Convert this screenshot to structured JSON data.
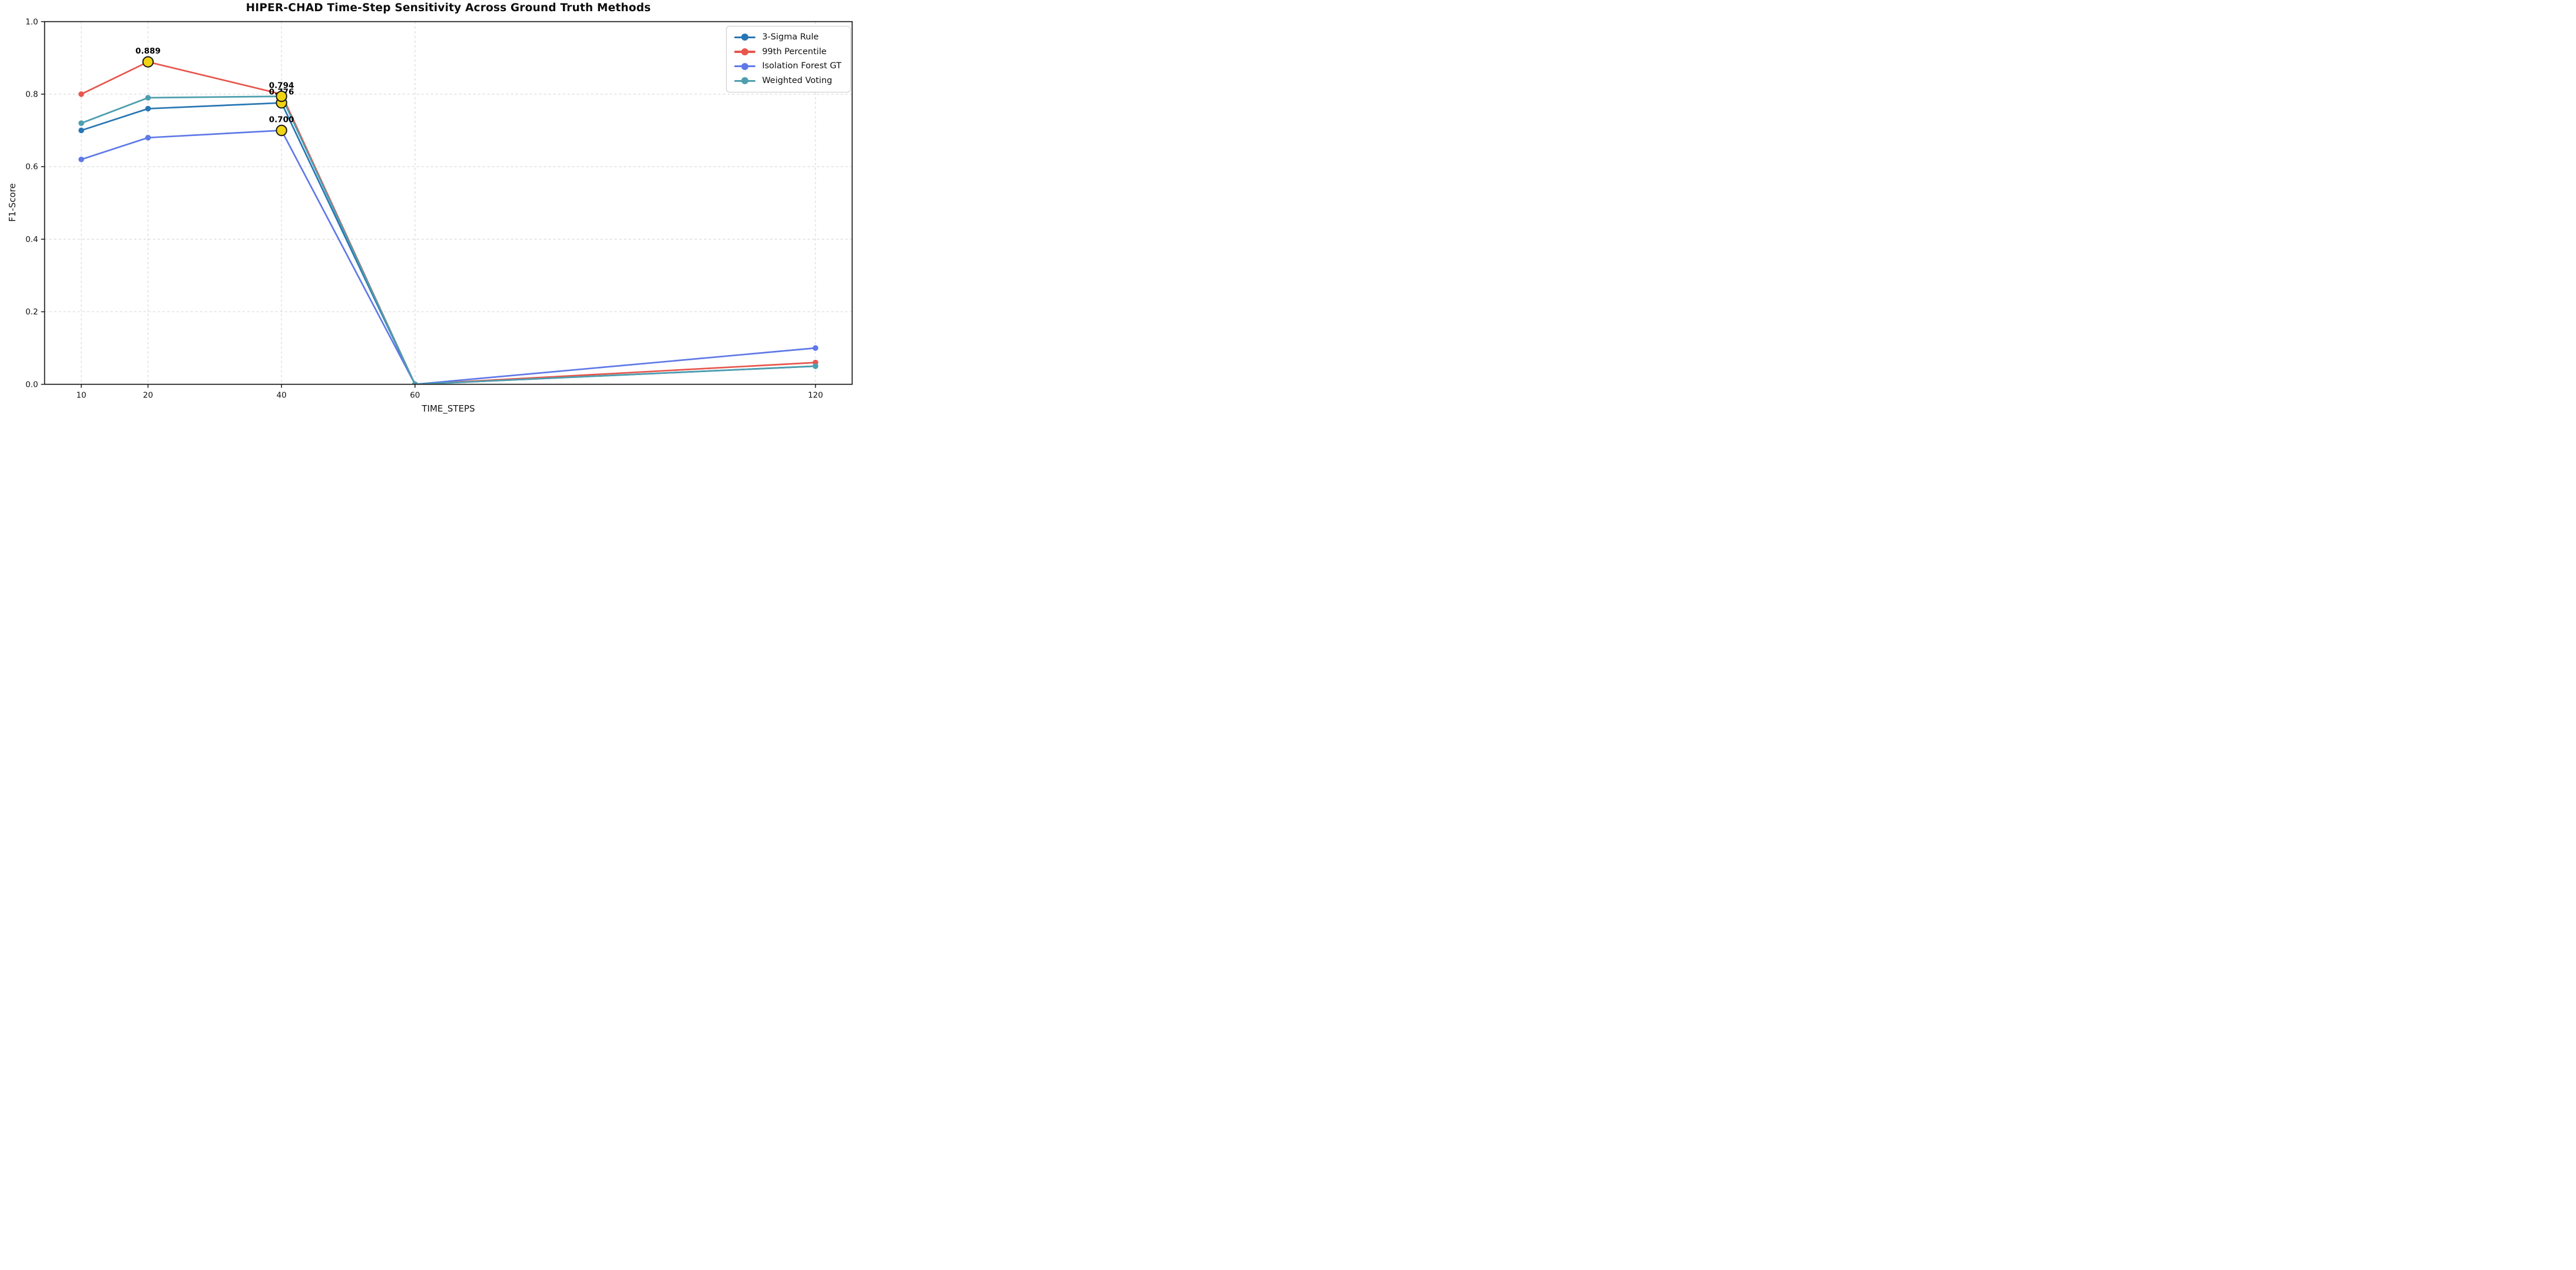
{
  "chart_data": {
    "type": "line",
    "title": "HIPER-CHAD Time-Step Sensitivity Across Ground Truth Methods",
    "xlabel": "TIME_STEPS",
    "ylabel": "F1-Score",
    "x": [
      10,
      20,
      40,
      60,
      120
    ],
    "xtick_labels": [
      "10",
      "20",
      "40",
      "60",
      "120"
    ],
    "ytick_values": [
      0.0,
      0.2,
      0.4,
      0.6,
      0.8,
      1.0
    ],
    "ytick_labels": [
      "0.0",
      "0.2",
      "0.4",
      "0.6",
      "0.8",
      "1.0"
    ],
    "xlim": [
      4.5,
      125.5
    ],
    "ylim": [
      0.0,
      1.0
    ],
    "grid": "dashed-light-gray",
    "legend_position": "upper-right",
    "series": [
      {
        "name": "3-Sigma Rule",
        "color": "#2776b4",
        "values": [
          0.7,
          0.76,
          0.776,
          0.0,
          0.05
        ]
      },
      {
        "name": "99th Percentile",
        "color": "#e7564c",
        "values": [
          0.8,
          0.889,
          0.8,
          0.0,
          0.06
        ]
      },
      {
        "name": "Isolation Forest GT",
        "color": "#5f79e8",
        "values": [
          0.62,
          0.68,
          0.7,
          0.0,
          0.1
        ]
      },
      {
        "name": "Weighted Voting",
        "color": "#4d9fae",
        "values": [
          0.72,
          0.79,
          0.794,
          0.0,
          0.05
        ]
      }
    ],
    "highlights": [
      {
        "series": "3-Sigma Rule",
        "x": 40,
        "y": 0.776,
        "label": "0.776"
      },
      {
        "series": "99th Percentile",
        "x": 20,
        "y": 0.889,
        "label": "0.889"
      },
      {
        "series": "Isolation Forest GT",
        "x": 40,
        "y": 0.7,
        "label": "0.700"
      },
      {
        "series": "Weighted Voting",
        "x": 40,
        "y": 0.794,
        "label": "0.794"
      }
    ],
    "highlight_marker": {
      "fill": "#f0d414",
      "edge": "#1a1a1a"
    },
    "colors": {
      "grid": "#d5d5d5",
      "spine": "#1a1a1a",
      "tick_label": "#111111",
      "annotation_text": "#000000",
      "background": "#ffffff"
    }
  }
}
